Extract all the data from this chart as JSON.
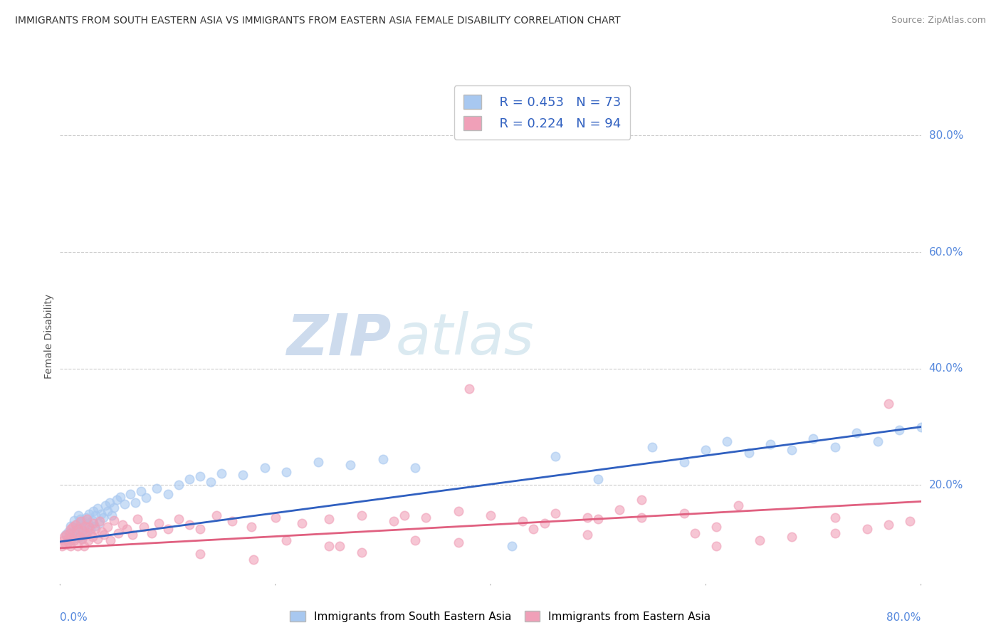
{
  "title": "IMMIGRANTS FROM SOUTH EASTERN ASIA VS IMMIGRANTS FROM EASTERN ASIA FEMALE DISABILITY CORRELATION CHART",
  "source": "Source: ZipAtlas.com",
  "ylabel": "Female Disability",
  "y_tick_vals": [
    0.8,
    0.6,
    0.4,
    0.2
  ],
  "xlim": [
    0.0,
    0.8
  ],
  "ylim": [
    0.03,
    0.88
  ],
  "blue_R": 0.453,
  "blue_N": 73,
  "pink_R": 0.224,
  "pink_N": 94,
  "blue_color": "#A8C8F0",
  "pink_color": "#F0A0B8",
  "trend_blue": "#3060C0",
  "trend_pink": "#E06080",
  "watermark_zip": "ZIP",
  "watermark_atlas": "atlas",
  "legend_label_blue": "Immigrants from South Eastern Asia",
  "legend_label_pink": "Immigrants from Eastern Asia",
  "blue_scatter_x": [
    0.005,
    0.008,
    0.01,
    0.01,
    0.012,
    0.013,
    0.015,
    0.015,
    0.016,
    0.017,
    0.018,
    0.018,
    0.019,
    0.02,
    0.02,
    0.021,
    0.022,
    0.023,
    0.024,
    0.025,
    0.026,
    0.027,
    0.028,
    0.03,
    0.031,
    0.032,
    0.033,
    0.035,
    0.036,
    0.038,
    0.04,
    0.042,
    0.044,
    0.046,
    0.048,
    0.05,
    0.053,
    0.056,
    0.06,
    0.065,
    0.07,
    0.075,
    0.08,
    0.09,
    0.1,
    0.11,
    0.12,
    0.13,
    0.14,
    0.15,
    0.17,
    0.19,
    0.21,
    0.24,
    0.27,
    0.3,
    0.33,
    0.42,
    0.46,
    0.5,
    0.55,
    0.58,
    0.6,
    0.62,
    0.64,
    0.66,
    0.68,
    0.7,
    0.72,
    0.74,
    0.76,
    0.78,
    0.8
  ],
  "blue_scatter_y": [
    0.115,
    0.12,
    0.105,
    0.13,
    0.118,
    0.14,
    0.11,
    0.125,
    0.135,
    0.148,
    0.112,
    0.128,
    0.142,
    0.108,
    0.122,
    0.138,
    0.115,
    0.132,
    0.145,
    0.12,
    0.135,
    0.15,
    0.125,
    0.14,
    0.155,
    0.13,
    0.148,
    0.16,
    0.135,
    0.15,
    0.145,
    0.165,
    0.155,
    0.17,
    0.148,
    0.162,
    0.175,
    0.18,
    0.168,
    0.185,
    0.17,
    0.19,
    0.178,
    0.195,
    0.185,
    0.2,
    0.21,
    0.215,
    0.205,
    0.22,
    0.218,
    0.23,
    0.222,
    0.24,
    0.235,
    0.245,
    0.23,
    0.095,
    0.25,
    0.21,
    0.265,
    0.24,
    0.26,
    0.275,
    0.255,
    0.27,
    0.26,
    0.28,
    0.265,
    0.29,
    0.275,
    0.295,
    0.3
  ],
  "pink_scatter_x": [
    0.002,
    0.003,
    0.004,
    0.005,
    0.006,
    0.007,
    0.008,
    0.009,
    0.01,
    0.01,
    0.011,
    0.012,
    0.013,
    0.014,
    0.015,
    0.016,
    0.017,
    0.018,
    0.019,
    0.02,
    0.021,
    0.022,
    0.023,
    0.024,
    0.025,
    0.026,
    0.027,
    0.028,
    0.03,
    0.031,
    0.033,
    0.035,
    0.037,
    0.039,
    0.041,
    0.044,
    0.047,
    0.05,
    0.054,
    0.058,
    0.062,
    0.067,
    0.072,
    0.078,
    0.085,
    0.092,
    0.1,
    0.11,
    0.12,
    0.13,
    0.145,
    0.16,
    0.178,
    0.2,
    0.225,
    0.25,
    0.21,
    0.28,
    0.31,
    0.34,
    0.37,
    0.4,
    0.43,
    0.46,
    0.49,
    0.52,
    0.13,
    0.25,
    0.37,
    0.49,
    0.61,
    0.61,
    0.65,
    0.68,
    0.72,
    0.75,
    0.77,
    0.79,
    0.72,
    0.58,
    0.5,
    0.45,
    0.38,
    0.32,
    0.26,
    0.33,
    0.44,
    0.54,
    0.63,
    0.54,
    0.18,
    0.28,
    0.59,
    0.77
  ],
  "pink_scatter_y": [
    0.095,
    0.105,
    0.112,
    0.098,
    0.115,
    0.108,
    0.102,
    0.118,
    0.095,
    0.125,
    0.11,
    0.128,
    0.105,
    0.132,
    0.115,
    0.095,
    0.125,
    0.112,
    0.138,
    0.108,
    0.122,
    0.095,
    0.13,
    0.115,
    0.142,
    0.105,
    0.128,
    0.118,
    0.112,
    0.135,
    0.125,
    0.108,
    0.138,
    0.12,
    0.115,
    0.128,
    0.105,
    0.14,
    0.118,
    0.132,
    0.125,
    0.115,
    0.142,
    0.128,
    0.118,
    0.135,
    0.125,
    0.142,
    0.132,
    0.125,
    0.148,
    0.138,
    0.128,
    0.145,
    0.135,
    0.142,
    0.105,
    0.148,
    0.138,
    0.145,
    0.155,
    0.148,
    0.138,
    0.152,
    0.145,
    0.158,
    0.082,
    0.095,
    0.102,
    0.115,
    0.128,
    0.095,
    0.105,
    0.112,
    0.118,
    0.125,
    0.132,
    0.138,
    0.145,
    0.152,
    0.142,
    0.135,
    0.365,
    0.148,
    0.095,
    0.105,
    0.125,
    0.145,
    0.165,
    0.175,
    0.072,
    0.085,
    0.118,
    0.34
  ]
}
